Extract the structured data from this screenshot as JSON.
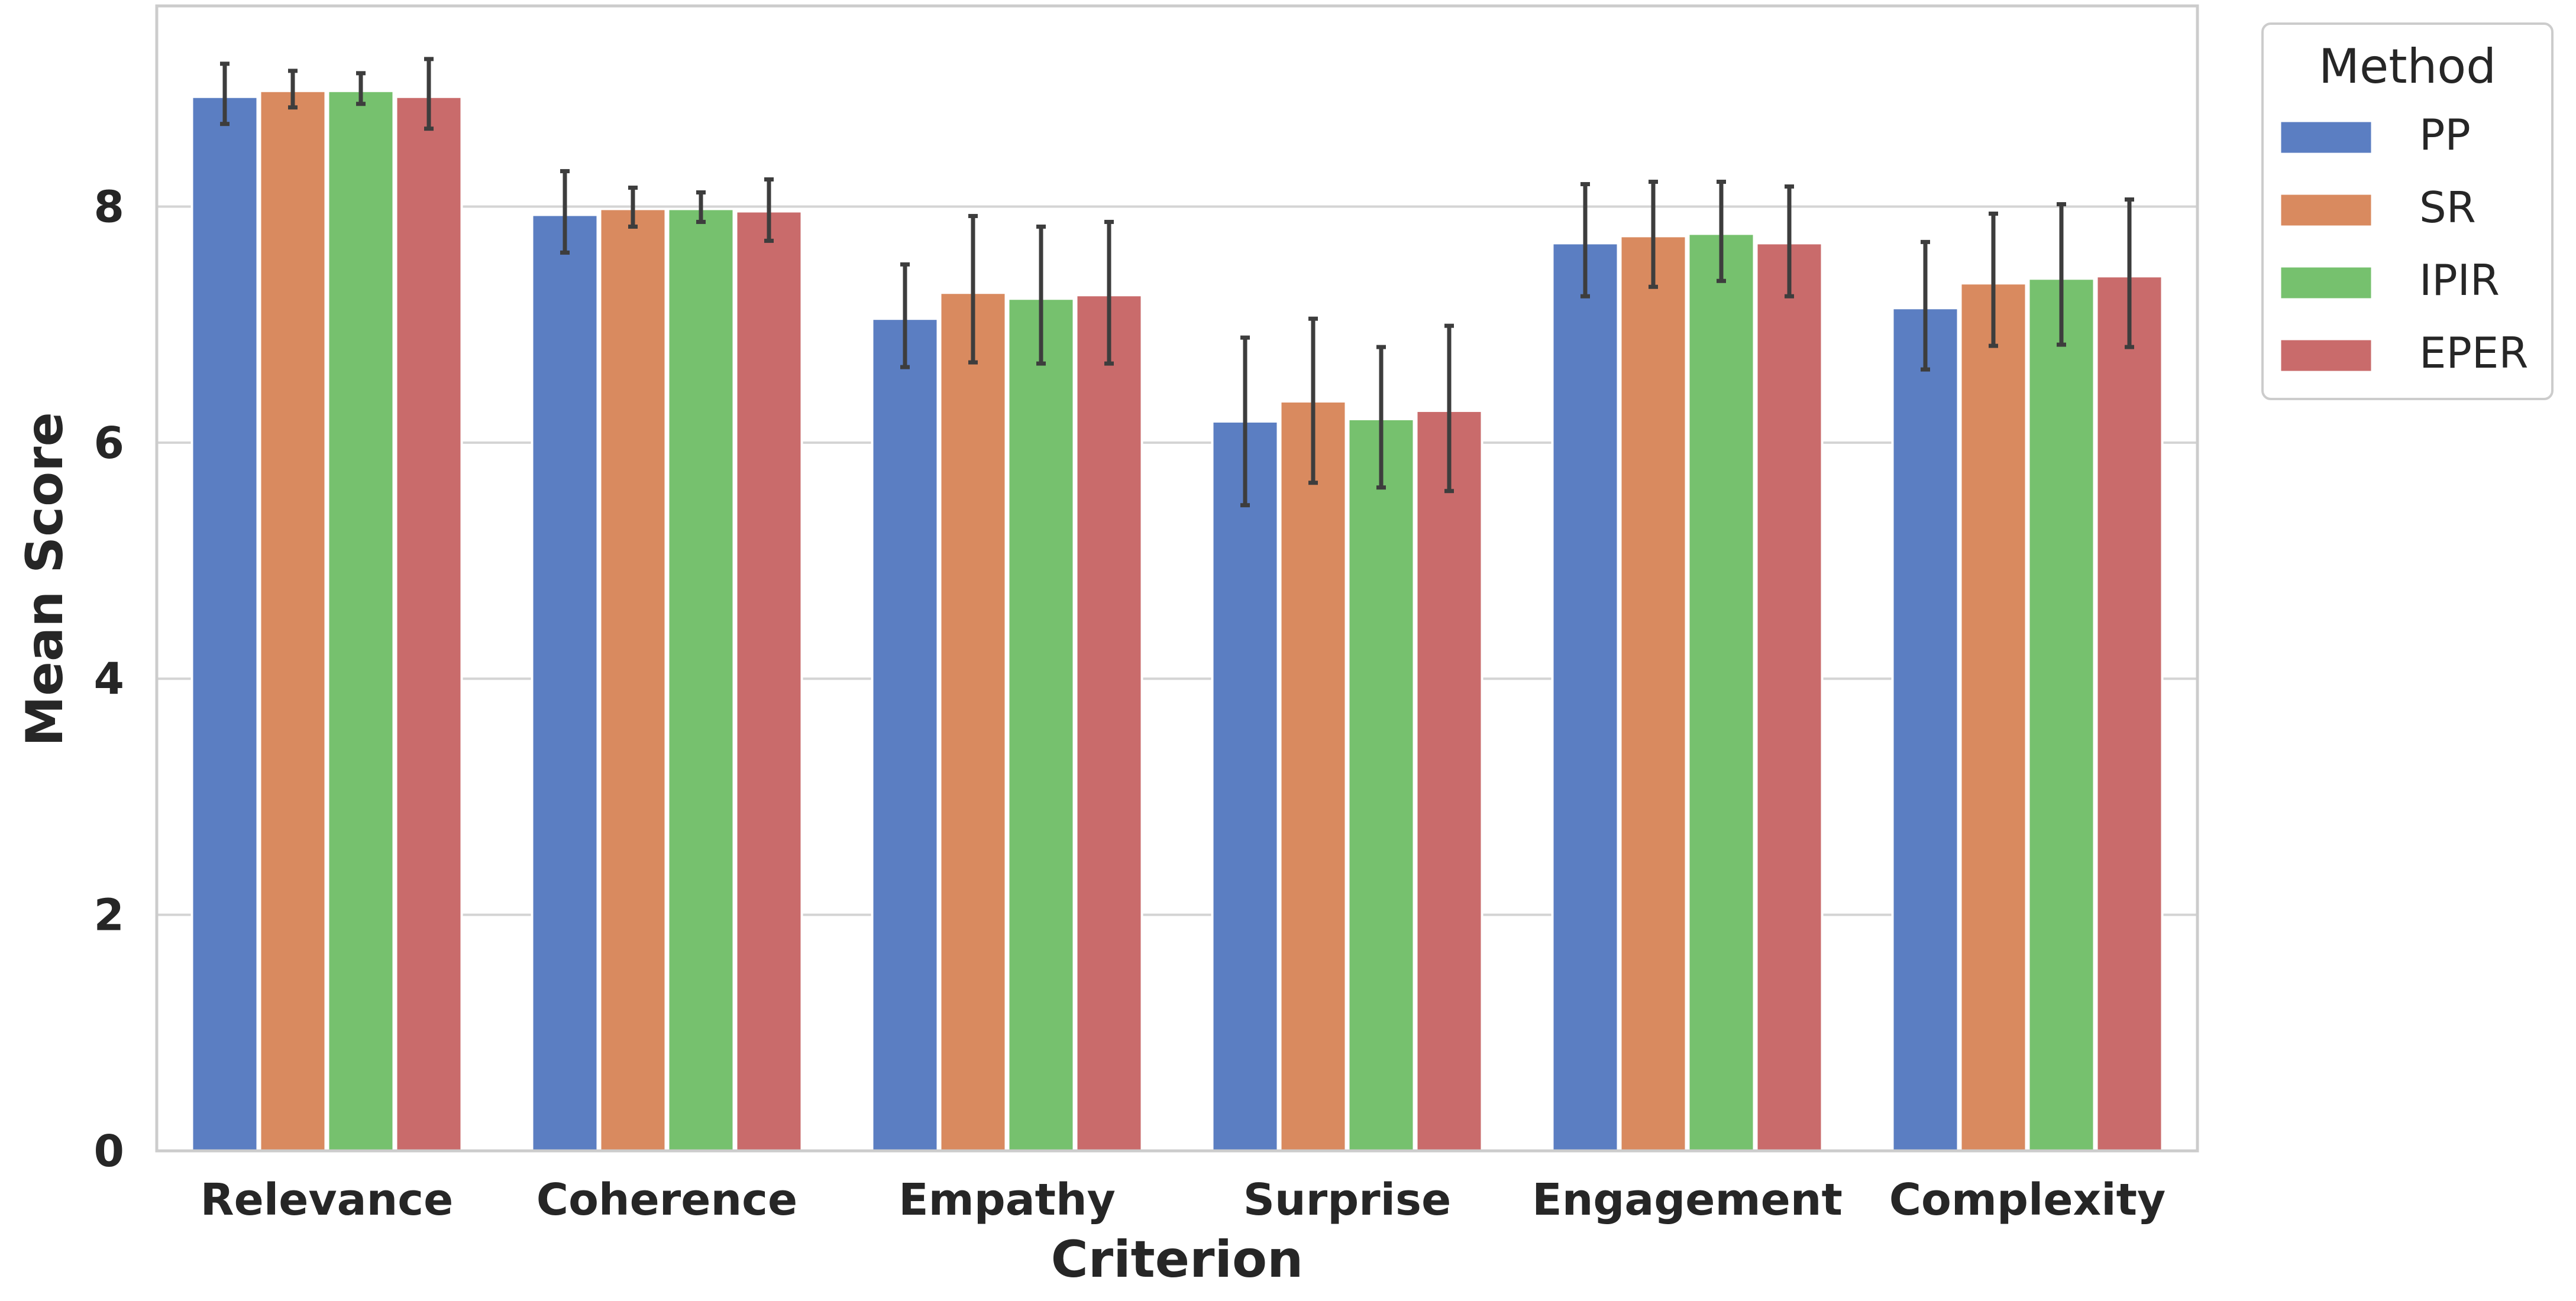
{
  "chart_data": {
    "type": "bar",
    "title": "",
    "xlabel": "Criterion",
    "ylabel": "Mean Score",
    "ylim": [
      0,
      9.7
    ],
    "yticks": [
      0,
      2,
      4,
      6,
      8
    ],
    "ytick_labels": [
      "0",
      "2",
      "4",
      "6",
      "8"
    ],
    "grid": "horizontal",
    "categories": [
      "Relevance",
      "Coherence",
      "Empathy",
      "Surprise",
      "Engagement",
      "Complexity"
    ],
    "legend": {
      "title": "Method",
      "position": "outside-top-right"
    },
    "series": [
      {
        "name": "PP",
        "color": "#5b7ec2",
        "values": [
          8.93,
          7.93,
          7.05,
          6.18,
          7.69,
          7.14
        ],
        "err_low": [
          8.7,
          7.61,
          6.64,
          5.47,
          7.24,
          6.62
        ],
        "err_high": [
          9.21,
          8.3,
          7.51,
          6.89,
          8.19,
          7.7
        ]
      },
      {
        "name": "SR",
        "color": "#d98a5f",
        "values": [
          8.98,
          7.98,
          7.27,
          6.35,
          7.75,
          7.35
        ],
        "err_low": [
          8.84,
          7.83,
          6.68,
          5.66,
          7.32,
          6.82
        ],
        "err_high": [
          9.15,
          8.16,
          7.92,
          7.05,
          8.21,
          7.94
        ]
      },
      {
        "name": "IPIR",
        "color": "#76c16e",
        "values": [
          8.98,
          7.98,
          7.22,
          6.2,
          7.77,
          7.39
        ],
        "err_low": [
          8.87,
          7.87,
          6.67,
          5.62,
          7.37,
          6.83
        ],
        "err_high": [
          9.13,
          8.12,
          7.83,
          6.81,
          8.21,
          8.02
        ]
      },
      {
        "name": "EPER",
        "color": "#c96b6b",
        "values": [
          8.93,
          7.96,
          7.25,
          6.27,
          7.69,
          7.41
        ],
        "err_low": [
          8.66,
          7.71,
          6.67,
          5.59,
          7.24,
          6.81
        ],
        "err_high": [
          9.25,
          8.23,
          7.87,
          6.99,
          8.17,
          8.06
        ]
      }
    ]
  }
}
